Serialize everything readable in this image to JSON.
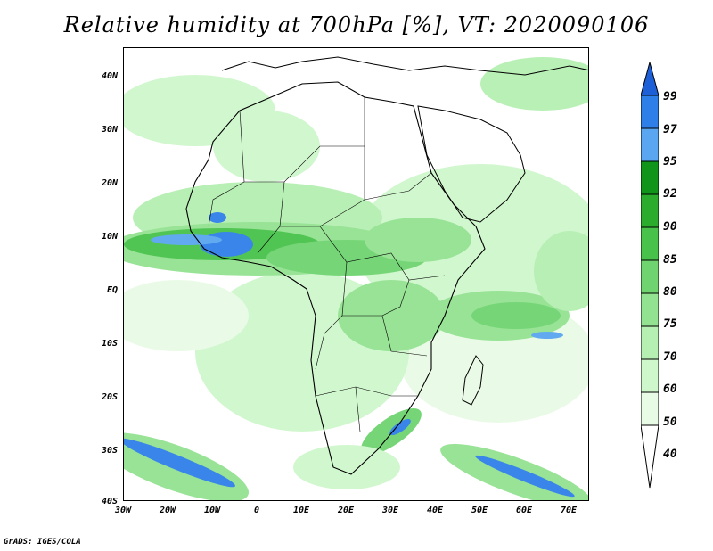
{
  "title": "Relative humidity at 700hPa [%], VT: 2020090106",
  "credit": "GrADS: IGES/COLA",
  "y_ticks": [
    "40N",
    "30N",
    "20N",
    "10N",
    "EQ",
    "10S",
    "20S",
    "30S",
    "40S"
  ],
  "x_ticks": [
    "30W",
    "20W",
    "10W",
    "0",
    "10E",
    "20E",
    "30E",
    "40E",
    "50E",
    "60E",
    "70E"
  ],
  "colorbar": {
    "levels": [
      "99",
      "97",
      "95",
      "92",
      "90",
      "85",
      "80",
      "75",
      "70",
      "60",
      "50",
      "40"
    ],
    "colors": [
      "#1c5fd6",
      "#2f7fe8",
      "#5aa6f0",
      "#10941a",
      "#2bac2d",
      "#48c24a",
      "#6fd470",
      "#93e291",
      "#b5efb2",
      "#cff7cc",
      "#e8fbe5",
      "#ffffff"
    ]
  },
  "map": {
    "extent": {
      "lon": [
        -30,
        75
      ],
      "lat": [
        -40,
        45
      ]
    },
    "variable": "Relative humidity at 700hPa",
    "units": "%"
  }
}
